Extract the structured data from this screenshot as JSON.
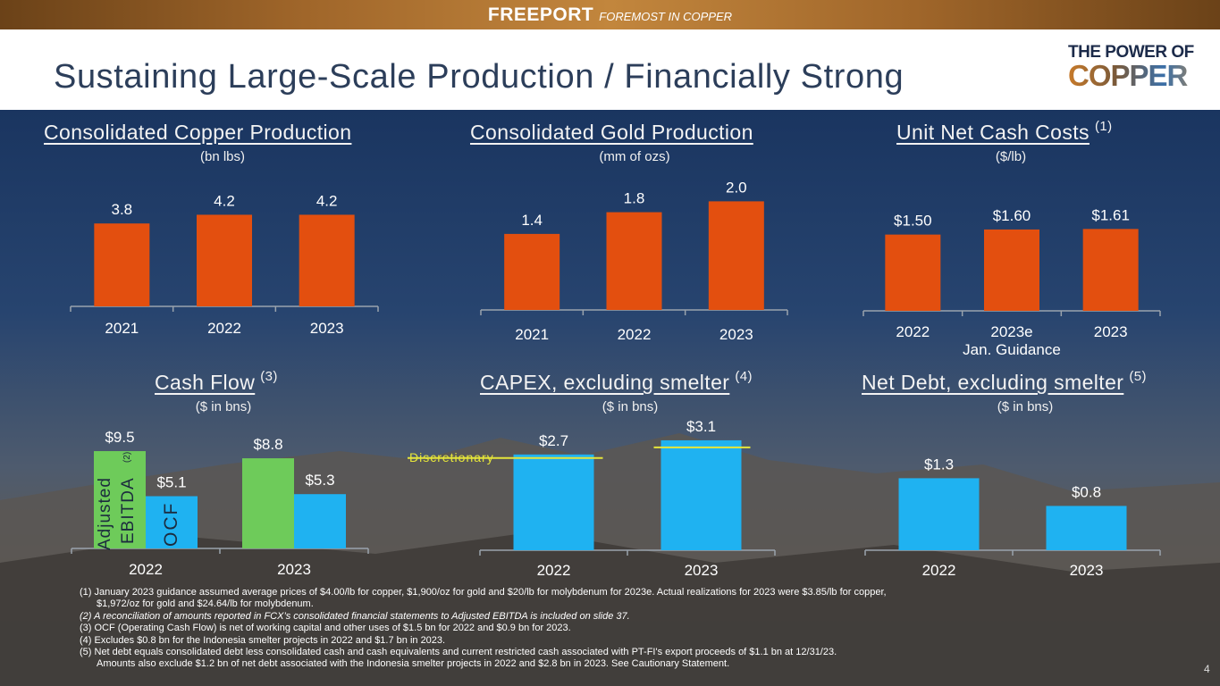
{
  "brand": {
    "name": "FREEPORT",
    "tagline": "FOREMOST IN COPPER"
  },
  "title": "Sustaining Large-Scale Production / Financially Strong",
  "logo": {
    "line1": "THE POWER OF",
    "line2": "COPPER"
  },
  "colors": {
    "orange": "#e34f0f",
    "green": "#6ecb5a",
    "blue": "#1fb2f1",
    "highlight": "#e6e63a"
  },
  "panels": {
    "copper": {
      "title": "Consolidated Copper Production",
      "note": "",
      "unit": "(bn lbs)"
    },
    "gold": {
      "title": "Consolidated Gold Production",
      "note": "",
      "unit": "(mm of ozs)"
    },
    "cost": {
      "title": "Unit Net Cash Costs",
      "note": "(1)",
      "unit": "($/lb)"
    },
    "cash": {
      "title": "Cash Flow",
      "note": "(3)",
      "unit": "($ in bns)",
      "series_label_a": "Adjusted",
      "series_label_b": "EBITDA",
      "series_note": "(2)",
      "series_label_c": "OCF"
    },
    "capex": {
      "title": "CAPEX, excluding smelter",
      "note": "(4)",
      "unit": "($ in bns)",
      "discretionary": "Discretionary"
    },
    "debt": {
      "title": "Net Debt, excluding smelter",
      "note": "(5)",
      "unit": "($ in bns)"
    }
  },
  "chart_data": [
    {
      "id": "copper",
      "type": "bar",
      "title": "Consolidated Copper Production",
      "ylabel": "(bn lbs)",
      "categories": [
        "2021",
        "2022",
        "2023"
      ],
      "values": [
        3.8,
        4.2,
        4.2
      ],
      "labels": [
        "3.8",
        "4.2",
        "4.2"
      ],
      "ylim": [
        0,
        5.2
      ]
    },
    {
      "id": "gold",
      "type": "bar",
      "title": "Consolidated Gold Production",
      "ylabel": "(mm of ozs)",
      "categories": [
        "2021",
        "2022",
        "2023"
      ],
      "values": [
        1.4,
        1.8,
        2.0
      ],
      "labels": [
        "1.4",
        "1.8",
        "2.0"
      ],
      "ylim": [
        0,
        2.5
      ]
    },
    {
      "id": "cost",
      "type": "bar",
      "title": "Unit Net Cash Costs",
      "ylabel": "($/lb)",
      "categories": [
        "2022",
        "2023e",
        "2023"
      ],
      "category_sublabels": [
        "",
        "Jan. Guidance",
        ""
      ],
      "values": [
        1.5,
        1.6,
        1.61
      ],
      "labels": [
        "$1.50",
        "$1.60",
        "$1.61"
      ],
      "ylim": [
        0,
        2.6
      ]
    },
    {
      "id": "cash",
      "type": "bar",
      "title": "Cash Flow",
      "ylabel": "($ in bns)",
      "categories": [
        "2022",
        "2023"
      ],
      "series": [
        {
          "name": "Adjusted EBITDA",
          "values": [
            9.5,
            8.8
          ],
          "labels": [
            "$9.5",
            "$8.8"
          ]
        },
        {
          "name": "OCF",
          "values": [
            5.1,
            5.3
          ],
          "labels": [
            "$5.1",
            "$5.3"
          ]
        }
      ],
      "ylim": [
        0,
        10.2
      ]
    },
    {
      "id": "capex",
      "type": "bar",
      "title": "CAPEX, excluding smelter",
      "ylabel": "($ in bns)",
      "categories": [
        "2022",
        "2023"
      ],
      "values": [
        2.7,
        3.1
      ],
      "labels": [
        "$2.7",
        "$3.1"
      ],
      "discretionary_markers": [
        2.6,
        2.9
      ],
      "ylim": [
        0,
        3.35
      ]
    },
    {
      "id": "debt",
      "type": "bar",
      "title": "Net Debt, excluding smelter",
      "ylabel": "($ in bns)",
      "categories": [
        "2022",
        "2023"
      ],
      "values": [
        1.3,
        0.8
      ],
      "labels": [
        "$1.3",
        "$0.8"
      ],
      "ylim": [
        0,
        2.0
      ]
    }
  ],
  "footnotes": [
    "(1) January 2023 guidance assumed average prices of $4.00/lb for copper, $1,900/oz for gold and $20/lb for molybdenum for 2023e.  Actual realizations for 2023 were $3.85/lb for copper,",
    "$1,972/oz for gold and $24.64/lb for molybdenum.",
    "(2) A reconciliation of amounts reported in FCX’s consolidated financial statements to Adjusted EBITDA is included on slide 37.",
    "(3) OCF (Operating Cash Flow) is net of working capital and other uses of $1.5 bn for 2022 and $0.9 bn for 2023.",
    "(4) Excludes $0.8 bn for the Indonesia smelter projects in 2022 and $1.7 bn in 2023.",
    "(5) Net debt equals consolidated debt less consolidated cash and cash equivalents and current restricted cash associated with PT-FI's export proceeds of $1.1 bn at 12/31/23.",
    "Amounts also exclude $1.2 bn of net debt associated with the Indonesia smelter projects in 2022 and $2.8 bn in 2023. See Cautionary Statement."
  ],
  "page_number": "4"
}
